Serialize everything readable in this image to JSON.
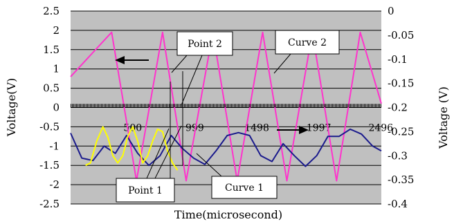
{
  "chart_data": {
    "type": "line",
    "xlabel": "Time(microsecond)",
    "ylabel_left": "Voltage(V)",
    "ylabel_right": "Voltage (V)",
    "ylim_left": [
      -2.5,
      2.5
    ],
    "ylim_right": [
      -0.4,
      0
    ],
    "yticks_left": [
      "2.5",
      "2",
      "1.5",
      "1",
      "0.5",
      "0",
      "-0.5",
      "-1",
      "-1.5",
      "-2",
      "-2.5"
    ],
    "yticks_right": [
      "0",
      "-0.05",
      "-0.1",
      "-0.15",
      "-0.2",
      "-0.25",
      "-0.3",
      "-0.35",
      "-0.4"
    ],
    "xticks": [
      "500",
      "999",
      "1498",
      "1997",
      "2496"
    ],
    "x_range": [
      0,
      2500
    ],
    "grid": true,
    "series": [
      {
        "key": "triangle",
        "axis": "left",
        "color": "#ff33cc",
        "x": [
          0,
          330,
          530,
          740,
          930,
          1145,
          1340,
          1545,
          1740,
          1945,
          2140,
          2330,
          2500
        ],
        "y": [
          0.8,
          1.95,
          -1.9,
          1.95,
          -1.9,
          1.95,
          -1.9,
          1.95,
          -1.9,
          1.95,
          -1.9,
          1.95,
          0.1
        ]
      },
      {
        "key": "curve1",
        "axis": "right",
        "color": "#1a1a8c",
        "x": [
          0,
          90,
          180,
          270,
          360,
          450,
          540,
          630,
          720,
          810,
          900,
          990,
          1080,
          1170,
          1260,
          1350,
          1440,
          1530,
          1620,
          1710,
          1800,
          1890,
          1980,
          2070,
          2160,
          2250,
          2340,
          2430,
          2500
        ],
        "y": [
          -0.253,
          -0.305,
          -0.31,
          -0.28,
          -0.295,
          -0.258,
          -0.295,
          -0.32,
          -0.3,
          -0.258,
          -0.285,
          -0.305,
          -0.318,
          -0.29,
          -0.258,
          -0.252,
          -0.258,
          -0.3,
          -0.312,
          -0.275,
          -0.3,
          -0.322,
          -0.3,
          -0.26,
          -0.26,
          -0.245,
          -0.255,
          -0.28,
          -0.29
        ]
      },
      {
        "key": "yellow",
        "axis": "right",
        "color": "#ffff00",
        "x": [
          120,
          160,
          210,
          260,
          300,
          340,
          380,
          420,
          460,
          500,
          540,
          580,
          620,
          660,
          700,
          740,
          780,
          820,
          860
        ],
        "y": [
          -0.32,
          -0.315,
          -0.27,
          -0.24,
          -0.262,
          -0.3,
          -0.315,
          -0.3,
          -0.26,
          -0.24,
          -0.27,
          -0.315,
          -0.3,
          -0.27,
          -0.245,
          -0.25,
          -0.29,
          -0.315,
          -0.33
        ]
      },
      {
        "key": "flat",
        "axis": "left",
        "color": "#000000",
        "x": [
          0,
          2500
        ],
        "y": [
          0.05,
          0.05
        ]
      }
    ],
    "annotations": {
      "point2": "Point 2",
      "curve2": "Curve 2",
      "point1": "Point 1",
      "curve1": "Curve 1"
    }
  }
}
